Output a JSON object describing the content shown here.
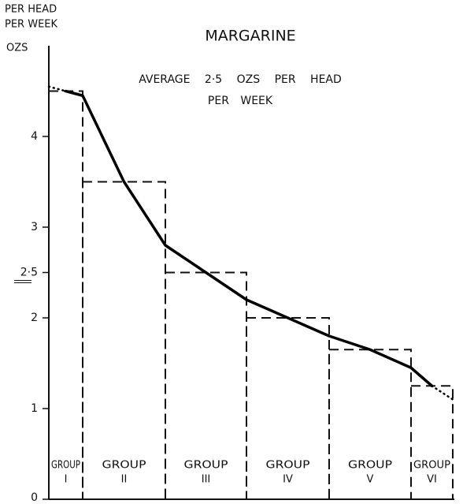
{
  "chart_data": {
    "type": "bar",
    "title": "MARGARINE",
    "y_label": [
      "PER HEAD",
      "PER WEEK"
    ],
    "y_unit": "OZS",
    "annotation": [
      "AVERAGE 2·5 OZS PER HEAD",
      "PER WEEK"
    ],
    "categories": [
      {
        "group": "GROUP",
        "number": "I"
      },
      {
        "group": "GROUP",
        "number": "II"
      },
      {
        "group": "GROUP",
        "number": "III"
      },
      {
        "group": "GROUP",
        "number": "IV"
      },
      {
        "group": "GROUP",
        "number": "V"
      },
      {
        "group": "GROUP",
        "number": "VI"
      }
    ],
    "values": [
      4.5,
      3.5,
      2.5,
      2.0,
      1.65,
      1.25
    ],
    "curve": {
      "values": [
        4.55,
        4.5,
        4.45,
        3.5,
        2.8,
        2.5,
        2.2,
        2.0,
        1.8,
        1.65,
        1.45,
        1.25,
        1.1
      ]
    },
    "color": "#111",
    "ylim": [
      0,
      5
    ],
    "yticks": [
      0,
      1,
      2,
      {
        "value": 2.5,
        "label": "2·5"
      },
      3,
      4
    ],
    "grid": false
  }
}
